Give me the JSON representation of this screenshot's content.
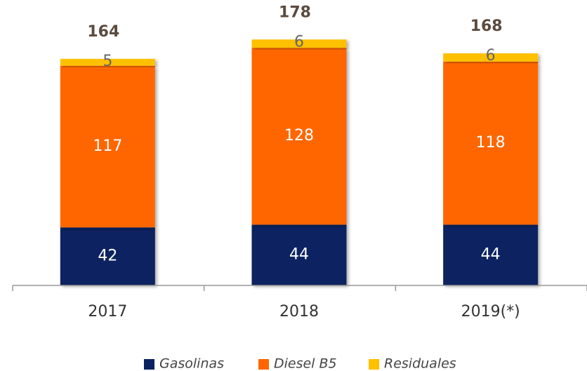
{
  "chart_data": {
    "type": "stacked_bar",
    "categories": [
      "2017",
      "2018",
      "2019(*)"
    ],
    "series": [
      {
        "name": "Gasolinas",
        "color": "#0b2160",
        "values": [
          42,
          44,
          44
        ]
      },
      {
        "name": "Diesel B5",
        "color": "#ff6600",
        "values": [
          117,
          128,
          118
        ]
      },
      {
        "name": "Residuales",
        "color": "#ffc000",
        "values": [
          5,
          6,
          6
        ]
      }
    ],
    "totals": [
      164,
      178,
      168
    ]
  }
}
